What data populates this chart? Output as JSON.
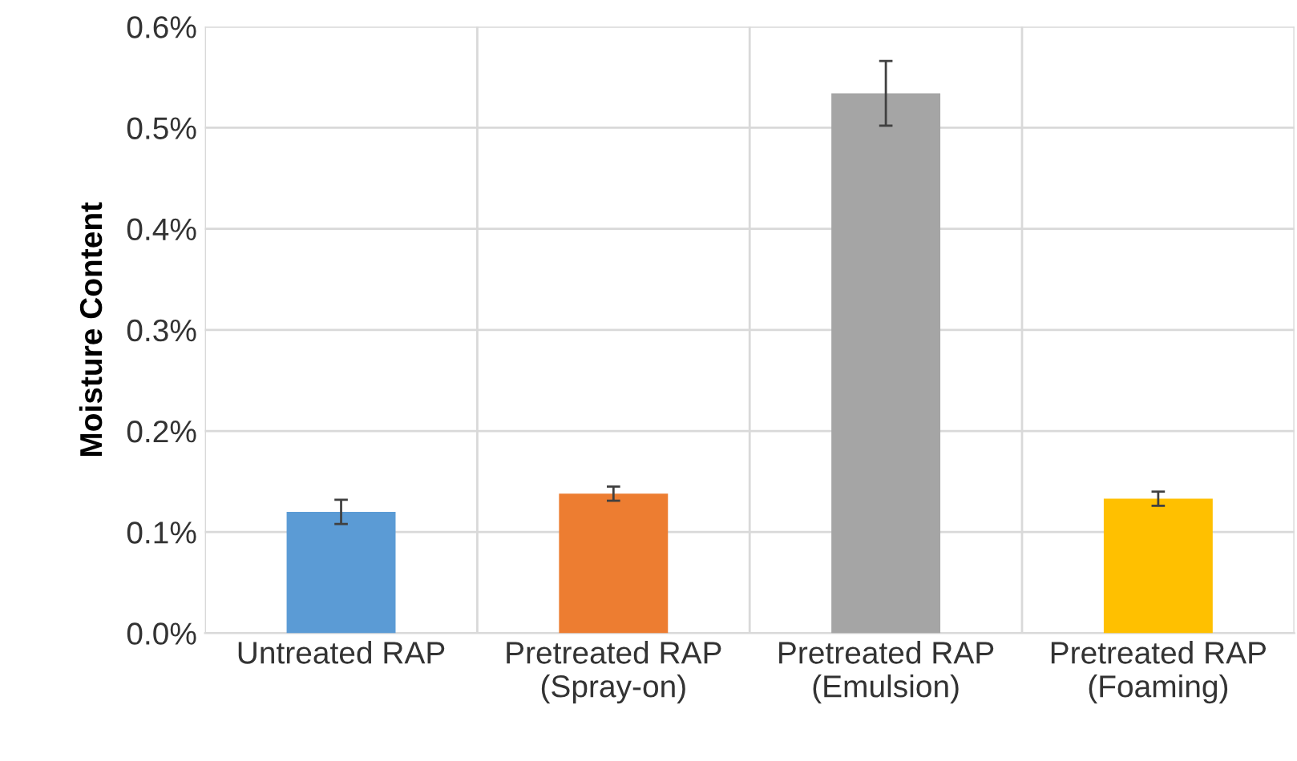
{
  "chart_data": {
    "type": "bar",
    "ylabel": "Moisture Content",
    "categories": [
      "Untreated RAP",
      "Pretreated RAP\n(Spray-on)",
      "Pretreated RAP\n(Emulsion)",
      "Pretreated RAP\n(Foaming)"
    ],
    "values": [
      0.12,
      0.138,
      0.534,
      0.133
    ],
    "colors": [
      "#5b9bd5",
      "#ed7d31",
      "#a5a5a5",
      "#ffc000"
    ],
    "errors": [
      0.012,
      0.007,
      0.032,
      0.007
    ],
    "ylim": [
      0,
      0.6
    ],
    "yticks": [
      {
        "value": 0,
        "label": "0.0%"
      },
      {
        "value": 0.1,
        "label": "0.1%"
      },
      {
        "value": 0.2,
        "label": "0.2%"
      },
      {
        "value": 0.3,
        "label": "0.3%"
      },
      {
        "value": 0.4,
        "label": "0.4%"
      },
      {
        "value": 0.5,
        "label": "0.5%"
      },
      {
        "value": 0.6,
        "label": "0.6%"
      }
    ],
    "grid": true,
    "legend": false
  }
}
